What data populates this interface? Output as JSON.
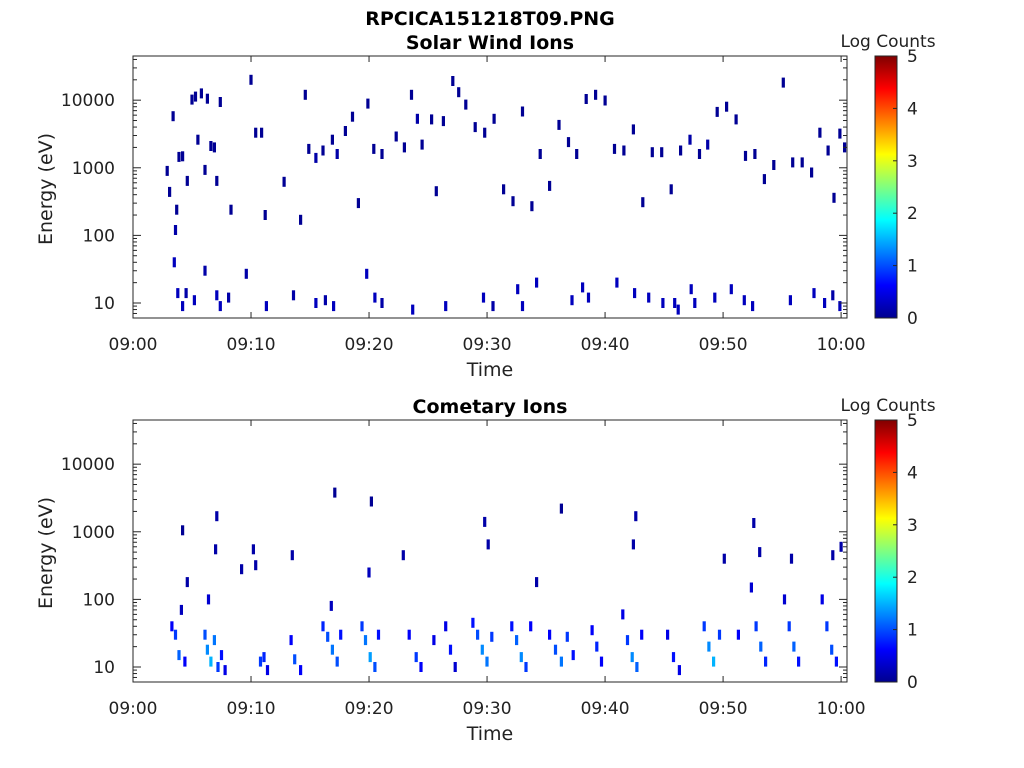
{
  "figure_title": "RPCICA151218T09.PNG",
  "colorbar": {
    "label": "Log Counts",
    "ticks": [
      "0",
      "1",
      "2",
      "3",
      "4",
      "5"
    ],
    "range": [
      0,
      5
    ],
    "colormap": "jet"
  },
  "chart_data": [
    {
      "type": "heatmap",
      "title": "Solar Wind Ions",
      "xlabel": "Time",
      "ylabel": "Energy (eV)",
      "x_ticks": [
        "09:00",
        "09:10",
        "09:20",
        "09:30",
        "09:40",
        "09:50",
        "10:00"
      ],
      "y_ticks": [
        "10",
        "100",
        "1000",
        "10000"
      ],
      "y_scale": "log",
      "ylim": [
        6,
        45000
      ],
      "xlim_minutes": [
        0,
        60.5
      ],
      "points": [
        [
          2.9,
          900,
          0.1
        ],
        [
          3.1,
          440,
          0.1
        ],
        [
          3.4,
          5800,
          0.1
        ],
        [
          3.6,
          120,
          0.2
        ],
        [
          3.7,
          240,
          0.1
        ],
        [
          3.9,
          1450,
          0.1
        ],
        [
          4.2,
          1480,
          0.1
        ],
        [
          4.6,
          640,
          0.1
        ],
        [
          5.0,
          10200,
          0.1
        ],
        [
          5.3,
          11300,
          0.1
        ],
        [
          5.5,
          2600,
          0.1
        ],
        [
          5.8,
          12600,
          0.1
        ],
        [
          6.1,
          930,
          0.1
        ],
        [
          6.3,
          10500,
          0.1
        ],
        [
          6.6,
          2100,
          0.1
        ],
        [
          6.9,
          2000,
          0.1
        ],
        [
          7.1,
          640,
          0.1
        ],
        [
          7.4,
          9400,
          0.1
        ],
        [
          8.3,
          240,
          0.1
        ],
        [
          10.0,
          20000,
          0.1
        ],
        [
          10.4,
          3300,
          0.1
        ],
        [
          10.9,
          3300,
          0.1
        ],
        [
          11.2,
          200,
          0.1
        ],
        [
          12.8,
          620,
          0.1
        ],
        [
          14.2,
          170,
          0.1
        ],
        [
          14.6,
          12000,
          0.1
        ],
        [
          14.9,
          1900,
          0.1
        ],
        [
          15.5,
          1400,
          0.2
        ],
        [
          16.1,
          1800,
          0.1
        ],
        [
          16.9,
          2600,
          0.1
        ],
        [
          17.3,
          1600,
          0.2
        ],
        [
          18.0,
          3500,
          0.1
        ],
        [
          18.6,
          5700,
          0.1
        ],
        [
          19.1,
          300,
          0.1
        ],
        [
          19.9,
          8900,
          0.1
        ],
        [
          20.4,
          1900,
          0.1
        ],
        [
          21.1,
          1600,
          0.1
        ],
        [
          22.3,
          2900,
          0.1
        ],
        [
          23.0,
          2000,
          0.1
        ],
        [
          23.6,
          12000,
          0.1
        ],
        [
          24.1,
          5300,
          0.2
        ],
        [
          24.5,
          2200,
          0.1
        ],
        [
          25.3,
          5200,
          0.1
        ],
        [
          25.7,
          450,
          0.1
        ],
        [
          26.3,
          4900,
          0.1
        ],
        [
          27.1,
          19200,
          0.1
        ],
        [
          27.6,
          13100,
          0.1
        ],
        [
          28.2,
          8600,
          0.1
        ],
        [
          29.0,
          4000,
          0.1
        ],
        [
          29.8,
          3300,
          0.1
        ],
        [
          30.6,
          5300,
          0.1
        ],
        [
          31.4,
          480,
          0.1
        ],
        [
          32.2,
          320,
          0.1
        ],
        [
          33.0,
          6800,
          0.1
        ],
        [
          33.8,
          270,
          0.1
        ],
        [
          34.5,
          1600,
          0.1
        ],
        [
          35.3,
          540,
          0.1
        ],
        [
          36.1,
          4300,
          0.1
        ],
        [
          36.9,
          2400,
          0.1
        ],
        [
          37.6,
          1600,
          0.1
        ],
        [
          38.4,
          10400,
          0.1
        ],
        [
          39.2,
          12000,
          0.1
        ],
        [
          40.0,
          9900,
          0.1
        ],
        [
          40.8,
          1900,
          0.1
        ],
        [
          41.6,
          1800,
          0.1
        ],
        [
          42.4,
          3700,
          0.1
        ],
        [
          43.2,
          310,
          0.1
        ],
        [
          44.0,
          1700,
          0.1
        ],
        [
          44.8,
          1700,
          0.1
        ],
        [
          45.6,
          480,
          0.1
        ],
        [
          46.4,
          1800,
          0.1
        ],
        [
          47.2,
          2600,
          0.2
        ],
        [
          48.0,
          1600,
          0.1
        ],
        [
          48.7,
          2200,
          0.2
        ],
        [
          49.5,
          6700,
          0.1
        ],
        [
          50.3,
          8000,
          0.1
        ],
        [
          51.1,
          5200,
          0.1
        ],
        [
          51.9,
          1500,
          0.1
        ],
        [
          52.7,
          1600,
          0.1
        ],
        [
          53.5,
          680,
          0.1
        ],
        [
          54.3,
          1100,
          0.1
        ],
        [
          55.1,
          18200,
          0.1
        ],
        [
          55.9,
          1200,
          0.1
        ],
        [
          56.7,
          1200,
          0.1
        ],
        [
          57.5,
          850,
          0.1
        ],
        [
          58.2,
          3300,
          0.1
        ],
        [
          58.9,
          1800,
          0.1
        ],
        [
          59.4,
          360,
          0.1
        ],
        [
          59.9,
          3200,
          0.1
        ],
        [
          60.3,
          2000,
          0.1
        ],
        [
          3.5,
          40,
          0.3
        ],
        [
          3.8,
          14,
          0.3
        ],
        [
          4.2,
          9,
          0.3
        ],
        [
          4.5,
          14,
          0.2
        ],
        [
          5.2,
          11,
          0.3
        ],
        [
          6.1,
          30,
          0.2
        ],
        [
          7.1,
          13,
          0.3
        ],
        [
          7.4,
          9,
          0.3
        ],
        [
          8.1,
          12,
          0.2
        ],
        [
          9.6,
          27,
          0.2
        ],
        [
          11.3,
          9,
          0.3
        ],
        [
          13.6,
          13,
          0.2
        ],
        [
          15.5,
          10,
          0.3
        ],
        [
          16.3,
          11,
          0.2
        ],
        [
          17.0,
          9,
          0.3
        ],
        [
          19.8,
          27,
          0.3
        ],
        [
          20.5,
          12,
          0.3
        ],
        [
          21.1,
          10,
          0.2
        ],
        [
          23.7,
          8,
          0.3
        ],
        [
          26.5,
          9,
          0.3
        ],
        [
          29.7,
          12,
          0.3
        ],
        [
          30.5,
          9,
          0.2
        ],
        [
          32.6,
          16,
          0.3
        ],
        [
          33.0,
          9,
          0.3
        ],
        [
          34.2,
          20,
          0.3
        ],
        [
          37.2,
          11,
          0.3
        ],
        [
          38.6,
          12,
          0.3
        ],
        [
          41.0,
          20,
          0.3
        ],
        [
          42.5,
          14,
          0.3
        ],
        [
          43.7,
          12,
          0.3
        ],
        [
          45.9,
          10,
          0.3
        ],
        [
          46.2,
          8,
          0.3
        ],
        [
          47.3,
          16,
          0.3
        ],
        [
          47.6,
          10,
          0.3
        ],
        [
          49.3,
          12,
          0.3
        ],
        [
          50.7,
          16,
          0.3
        ],
        [
          51.8,
          11,
          0.3
        ],
        [
          52.5,
          9,
          0.3
        ],
        [
          55.7,
          11,
          0.3
        ],
        [
          57.7,
          14,
          0.3
        ],
        [
          58.6,
          10,
          0.3
        ],
        [
          59.3,
          13,
          0.2
        ],
        [
          59.9,
          9,
          0.3
        ],
        [
          38.1,
          17,
          0.3
        ],
        [
          44.9,
          10,
          0.3
        ]
      ]
    },
    {
      "type": "heatmap",
      "title": "Cometary Ions",
      "xlabel": "Time",
      "ylabel": "Energy (eV)",
      "x_ticks": [
        "09:00",
        "09:10",
        "09:20",
        "09:30",
        "09:40",
        "09:50",
        "10:00"
      ],
      "y_ticks": [
        "10",
        "100",
        "1000",
        "10000"
      ],
      "y_scale": "log",
      "ylim": [
        6,
        45000
      ],
      "xlim_minutes": [
        0,
        60.5
      ],
      "points": [
        [
          3.3,
          40,
          0.6
        ],
        [
          3.6,
          30,
          0.9
        ],
        [
          3.9,
          15,
          1.1
        ],
        [
          4.1,
          70,
          0.3
        ],
        [
          4.4,
          12,
          0.6
        ],
        [
          4.2,
          1050,
          0.1
        ],
        [
          4.6,
          180,
          0.2
        ],
        [
          6.1,
          30,
          1.0
        ],
        [
          6.3,
          18,
          1.3
        ],
        [
          6.6,
          12,
          1.5
        ],
        [
          6.9,
          25,
          1.2
        ],
        [
          7.2,
          10,
          0.9
        ],
        [
          7.5,
          15,
          0.7
        ],
        [
          7.8,
          9,
          0.5
        ],
        [
          7.1,
          1700,
          0.2
        ],
        [
          7.0,
          550,
          0.2
        ],
        [
          6.4,
          100,
          0.4
        ],
        [
          9.2,
          280,
          0.2
        ],
        [
          10.4,
          320,
          0.2
        ],
        [
          10.8,
          12,
          0.9
        ],
        [
          11.1,
          14,
          0.8
        ],
        [
          11.4,
          9,
          0.5
        ],
        [
          10.2,
          550,
          0.2
        ],
        [
          13.4,
          25,
          0.6
        ],
        [
          13.7,
          13,
          1.0
        ],
        [
          14.2,
          9,
          0.6
        ],
        [
          13.5,
          450,
          0.2
        ],
        [
          16.1,
          40,
          0.8
        ],
        [
          16.5,
          28,
          1.0
        ],
        [
          16.9,
          18,
          1.2
        ],
        [
          17.3,
          12,
          1.0
        ],
        [
          17.6,
          30,
          0.7
        ],
        [
          17.1,
          3800,
          0.1
        ],
        [
          16.8,
          80,
          0.3
        ],
        [
          19.4,
          40,
          0.9
        ],
        [
          19.7,
          25,
          1.2
        ],
        [
          20.1,
          14,
          1.4
        ],
        [
          20.5,
          10,
          1.0
        ],
        [
          20.8,
          30,
          0.7
        ],
        [
          20.2,
          2800,
          0.1
        ],
        [
          20.0,
          250,
          0.3
        ],
        [
          22.9,
          450,
          0.2
        ],
        [
          23.4,
          30,
          0.6
        ],
        [
          24.0,
          14,
          0.9
        ],
        [
          24.4,
          10,
          0.6
        ],
        [
          25.5,
          25,
          0.5
        ],
        [
          26.5,
          40,
          0.5
        ],
        [
          26.9,
          18,
          0.7
        ],
        [
          27.3,
          10,
          0.4
        ],
        [
          28.8,
          45,
          0.7
        ],
        [
          29.2,
          30,
          1.0
        ],
        [
          29.6,
          18,
          1.3
        ],
        [
          30.0,
          12,
          1.2
        ],
        [
          30.4,
          28,
          0.9
        ],
        [
          29.8,
          1400,
          0.2
        ],
        [
          30.1,
          650,
          0.2
        ],
        [
          32.1,
          40,
          0.7
        ],
        [
          32.5,
          25,
          1.1
        ],
        [
          32.9,
          14,
          1.3
        ],
        [
          33.3,
          10,
          0.9
        ],
        [
          33.7,
          40,
          0.6
        ],
        [
          34.2,
          180,
          0.2
        ],
        [
          35.3,
          30,
          0.6
        ],
        [
          35.8,
          18,
          1.0
        ],
        [
          36.3,
          12,
          1.2
        ],
        [
          36.8,
          28,
          0.9
        ],
        [
          37.3,
          15,
          0.7
        ],
        [
          36.3,
          2200,
          0.1
        ],
        [
          38.9,
          35,
          0.6
        ],
        [
          39.3,
          20,
          0.8
        ],
        [
          39.7,
          12,
          0.6
        ],
        [
          41.5,
          60,
          0.5
        ],
        [
          41.9,
          25,
          0.9
        ],
        [
          42.3,
          14,
          1.3
        ],
        [
          42.7,
          10,
          1.1
        ],
        [
          43.1,
          30,
          0.6
        ],
        [
          42.6,
          1700,
          0.2
        ],
        [
          42.4,
          650,
          0.2
        ],
        [
          45.3,
          30,
          0.5
        ],
        [
          45.8,
          14,
          0.7
        ],
        [
          46.3,
          9,
          0.5
        ],
        [
          48.4,
          40,
          0.9
        ],
        [
          48.8,
          20,
          1.3
        ],
        [
          49.2,
          12,
          1.5
        ],
        [
          49.7,
          30,
          0.9
        ],
        [
          50.1,
          400,
          0.2
        ],
        [
          51.3,
          30,
          0.6
        ],
        [
          52.4,
          150,
          0.4
        ],
        [
          52.8,
          40,
          0.9
        ],
        [
          53.2,
          20,
          1.1
        ],
        [
          53.6,
          12,
          0.8
        ],
        [
          52.6,
          1350,
          0.2
        ],
        [
          53.1,
          500,
          0.2
        ],
        [
          55.2,
          100,
          0.4
        ],
        [
          55.6,
          40,
          0.9
        ],
        [
          56.0,
          20,
          1.1
        ],
        [
          56.4,
          12,
          0.7
        ],
        [
          55.8,
          400,
          0.2
        ],
        [
          58.4,
          100,
          0.5
        ],
        [
          58.8,
          40,
          0.9
        ],
        [
          59.2,
          18,
          1.0
        ],
        [
          59.6,
          12,
          0.7
        ],
        [
          60.0,
          600,
          0.2
        ],
        [
          59.3,
          450,
          0.2
        ]
      ]
    }
  ]
}
